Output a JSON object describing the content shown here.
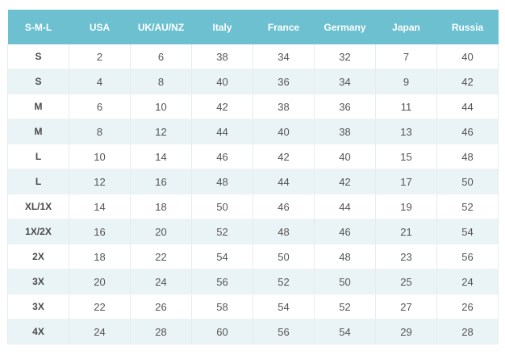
{
  "table": {
    "headers": [
      "S-M-L",
      "USA",
      "UK/AU/NZ",
      "Italy",
      "France",
      "Germany",
      "Japan",
      "Russia"
    ],
    "rows": [
      [
        "S",
        "2",
        "6",
        "38",
        "34",
        "32",
        "7",
        "40"
      ],
      [
        "S",
        "4",
        "8",
        "40",
        "36",
        "34",
        "9",
        "42"
      ],
      [
        "M",
        "6",
        "10",
        "42",
        "38",
        "36",
        "11",
        "44"
      ],
      [
        "M",
        "8",
        "12",
        "44",
        "40",
        "38",
        "13",
        "46"
      ],
      [
        "L",
        "10",
        "14",
        "46",
        "42",
        "40",
        "15",
        "48"
      ],
      [
        "L",
        "12",
        "16",
        "48",
        "44",
        "42",
        "17",
        "50"
      ],
      [
        "XL/1X",
        "14",
        "18",
        "50",
        "46",
        "44",
        "19",
        "52"
      ],
      [
        "1X/2X",
        "16",
        "20",
        "52",
        "48",
        "46",
        "21",
        "54"
      ],
      [
        "2X",
        "18",
        "22",
        "54",
        "50",
        "48",
        "23",
        "56"
      ],
      [
        "3X",
        "20",
        "24",
        "56",
        "52",
        "50",
        "25",
        "24"
      ],
      [
        "3X",
        "22",
        "26",
        "58",
        "54",
        "52",
        "27",
        "26"
      ],
      [
        "4X",
        "24",
        "28",
        "60",
        "56",
        "54",
        "29",
        "28"
      ]
    ]
  },
  "colors": {
    "header_bg": "#6cc0d0",
    "header_text": "#ffffff",
    "stripe_bg": "#eaf3f5",
    "cell_text": "#555555"
  }
}
